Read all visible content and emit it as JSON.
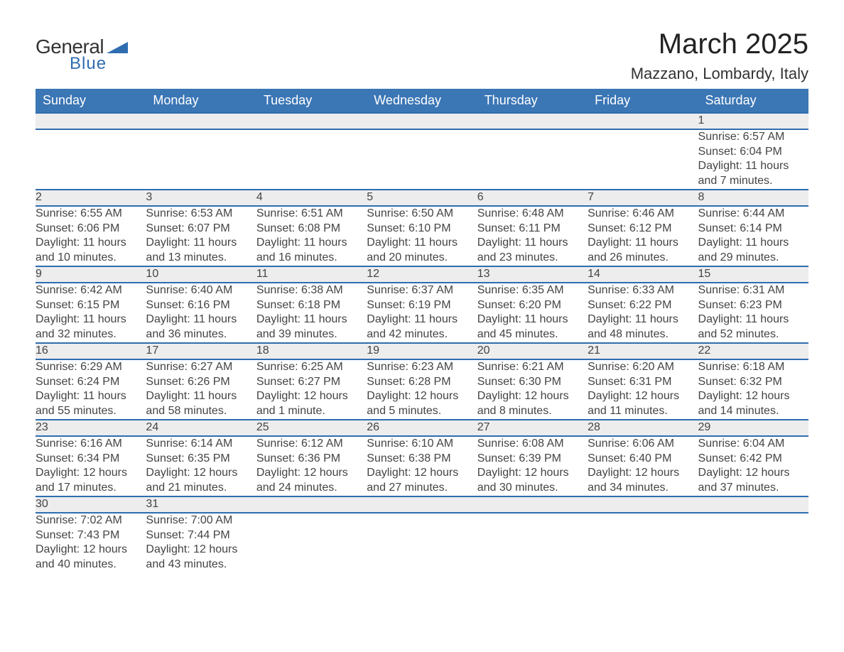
{
  "logo": {
    "word1": "General",
    "word2": "Blue",
    "color1": "#333333",
    "color2": "#2f6db0"
  },
  "title": "March 2025",
  "location": "Mazzano, Lombardy, Italy",
  "colors": {
    "header_bg": "#3b76b5",
    "header_text": "#ffffff",
    "row_divider": "#2f6db0",
    "daynum_bg": "#ededed",
    "body_text": "#444444",
    "page_bg": "#ffffff"
  },
  "fonts": {
    "title_size_pt": 30,
    "location_size_pt": 17,
    "header_size_pt": 14,
    "cell_size_pt": 12
  },
  "weekday_headers": [
    "Sunday",
    "Monday",
    "Tuesday",
    "Wednesday",
    "Thursday",
    "Friday",
    "Saturday"
  ],
  "labels": {
    "sunrise": "Sunrise: ",
    "sunset": "Sunset: ",
    "daylight": "Daylight: "
  },
  "weeks": [
    [
      null,
      null,
      null,
      null,
      null,
      null,
      {
        "d": "1",
        "sr": "6:57 AM",
        "ss": "6:04 PM",
        "dl": "11 hours and 7 minutes."
      }
    ],
    [
      {
        "d": "2",
        "sr": "6:55 AM",
        "ss": "6:06 PM",
        "dl": "11 hours and 10 minutes."
      },
      {
        "d": "3",
        "sr": "6:53 AM",
        "ss": "6:07 PM",
        "dl": "11 hours and 13 minutes."
      },
      {
        "d": "4",
        "sr": "6:51 AM",
        "ss": "6:08 PM",
        "dl": "11 hours and 16 minutes."
      },
      {
        "d": "5",
        "sr": "6:50 AM",
        "ss": "6:10 PM",
        "dl": "11 hours and 20 minutes."
      },
      {
        "d": "6",
        "sr": "6:48 AM",
        "ss": "6:11 PM",
        "dl": "11 hours and 23 minutes."
      },
      {
        "d": "7",
        "sr": "6:46 AM",
        "ss": "6:12 PM",
        "dl": "11 hours and 26 minutes."
      },
      {
        "d": "8",
        "sr": "6:44 AM",
        "ss": "6:14 PM",
        "dl": "11 hours and 29 minutes."
      }
    ],
    [
      {
        "d": "9",
        "sr": "6:42 AM",
        "ss": "6:15 PM",
        "dl": "11 hours and 32 minutes."
      },
      {
        "d": "10",
        "sr": "6:40 AM",
        "ss": "6:16 PM",
        "dl": "11 hours and 36 minutes."
      },
      {
        "d": "11",
        "sr": "6:38 AM",
        "ss": "6:18 PM",
        "dl": "11 hours and 39 minutes."
      },
      {
        "d": "12",
        "sr": "6:37 AM",
        "ss": "6:19 PM",
        "dl": "11 hours and 42 minutes."
      },
      {
        "d": "13",
        "sr": "6:35 AM",
        "ss": "6:20 PM",
        "dl": "11 hours and 45 minutes."
      },
      {
        "d": "14",
        "sr": "6:33 AM",
        "ss": "6:22 PM",
        "dl": "11 hours and 48 minutes."
      },
      {
        "d": "15",
        "sr": "6:31 AM",
        "ss": "6:23 PM",
        "dl": "11 hours and 52 minutes."
      }
    ],
    [
      {
        "d": "16",
        "sr": "6:29 AM",
        "ss": "6:24 PM",
        "dl": "11 hours and 55 minutes."
      },
      {
        "d": "17",
        "sr": "6:27 AM",
        "ss": "6:26 PM",
        "dl": "11 hours and 58 minutes."
      },
      {
        "d": "18",
        "sr": "6:25 AM",
        "ss": "6:27 PM",
        "dl": "12 hours and 1 minute."
      },
      {
        "d": "19",
        "sr": "6:23 AM",
        "ss": "6:28 PM",
        "dl": "12 hours and 5 minutes."
      },
      {
        "d": "20",
        "sr": "6:21 AM",
        "ss": "6:30 PM",
        "dl": "12 hours and 8 minutes."
      },
      {
        "d": "21",
        "sr": "6:20 AM",
        "ss": "6:31 PM",
        "dl": "12 hours and 11 minutes."
      },
      {
        "d": "22",
        "sr": "6:18 AM",
        "ss": "6:32 PM",
        "dl": "12 hours and 14 minutes."
      }
    ],
    [
      {
        "d": "23",
        "sr": "6:16 AM",
        "ss": "6:34 PM",
        "dl": "12 hours and 17 minutes."
      },
      {
        "d": "24",
        "sr": "6:14 AM",
        "ss": "6:35 PM",
        "dl": "12 hours and 21 minutes."
      },
      {
        "d": "25",
        "sr": "6:12 AM",
        "ss": "6:36 PM",
        "dl": "12 hours and 24 minutes."
      },
      {
        "d": "26",
        "sr": "6:10 AM",
        "ss": "6:38 PM",
        "dl": "12 hours and 27 minutes."
      },
      {
        "d": "27",
        "sr": "6:08 AM",
        "ss": "6:39 PM",
        "dl": "12 hours and 30 minutes."
      },
      {
        "d": "28",
        "sr": "6:06 AM",
        "ss": "6:40 PM",
        "dl": "12 hours and 34 minutes."
      },
      {
        "d": "29",
        "sr": "6:04 AM",
        "ss": "6:42 PM",
        "dl": "12 hours and 37 minutes."
      }
    ],
    [
      {
        "d": "30",
        "sr": "7:02 AM",
        "ss": "7:43 PM",
        "dl": "12 hours and 40 minutes."
      },
      {
        "d": "31",
        "sr": "7:00 AM",
        "ss": "7:44 PM",
        "dl": "12 hours and 43 minutes."
      },
      null,
      null,
      null,
      null,
      null
    ]
  ]
}
